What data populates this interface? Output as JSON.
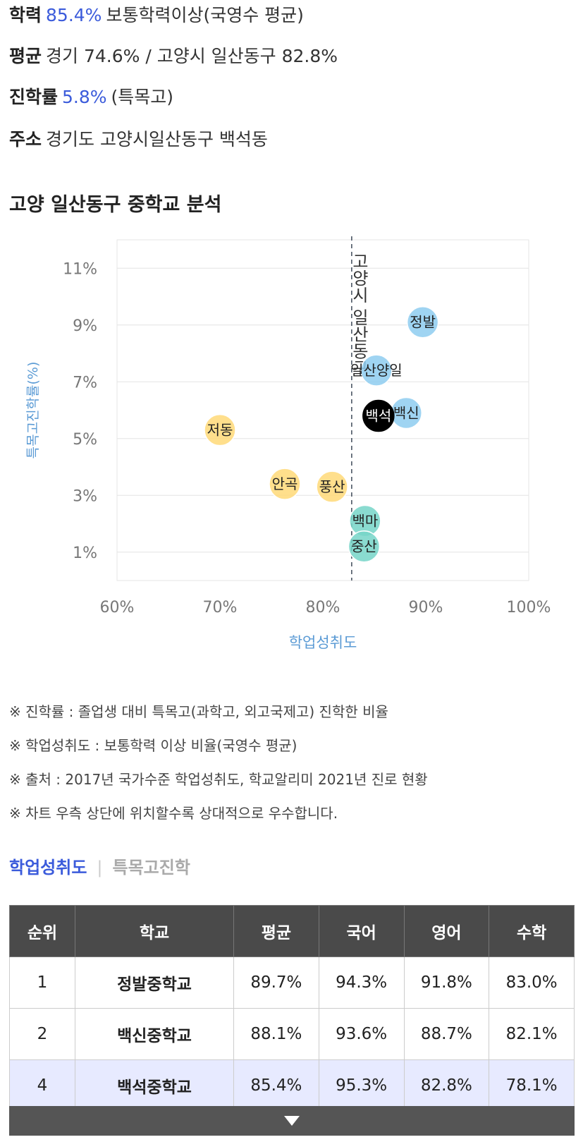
{
  "summary": {
    "l1": {
      "label": "학력",
      "value": "85.4%",
      "rest": "보통학력이상(국영수 평균)"
    },
    "l2": {
      "label": "평균",
      "rest": "경기 74.6% / 고양시 일산동구 82.8%"
    },
    "l3": {
      "label": "진학률",
      "value": "5.8%",
      "rest": "(특목고)"
    },
    "l4": {
      "label": "주소",
      "rest": "경기도 고양시일산동구 백석동"
    }
  },
  "section_title": "고양 일산동구 중학교 분석",
  "chart_data": {
    "type": "scatter",
    "xlabel": "학업성취도",
    "ylabel": "특목고진학률(%)",
    "xlim": [
      60,
      100
    ],
    "ylim": [
      0,
      12
    ],
    "xticks": [
      "60%",
      "70%",
      "80%",
      "90%",
      "100%"
    ],
    "yticks": [
      "1%",
      "3%",
      "5%",
      "7%",
      "9%",
      "11%"
    ],
    "reference_line": {
      "x": 82.8,
      "label": "고양시 일산동구"
    },
    "colors": {
      "blue": "#8ecdf0",
      "teal": "#76d5c8",
      "yellow": "#ffd978",
      "black": "#000000"
    },
    "points": [
      {
        "name": "정발",
        "x": 89.7,
        "y": 9.1,
        "color": "blue"
      },
      {
        "name": "일산양일",
        "x": 85.2,
        "y": 7.4,
        "color": "blue"
      },
      {
        "name": "백신",
        "x": 88.1,
        "y": 5.9,
        "color": "blue"
      },
      {
        "name": "백석",
        "x": 85.4,
        "y": 5.8,
        "color": "black"
      },
      {
        "name": "저동",
        "x": 70.0,
        "y": 5.3,
        "color": "yellow"
      },
      {
        "name": "안곡",
        "x": 76.3,
        "y": 3.4,
        "color": "yellow"
      },
      {
        "name": "풍산",
        "x": 80.9,
        "y": 3.3,
        "color": "yellow"
      },
      {
        "name": "백마",
        "x": 84.1,
        "y": 2.1,
        "color": "teal"
      },
      {
        "name": "중산",
        "x": 84.0,
        "y": 1.2,
        "color": "teal"
      }
    ]
  },
  "notes": [
    "※ 진학률 : 졸업생 대비 특목고(과학고, 외고국제고) 진학한 비율",
    "※ 학업성취도 : 보통학력 이상 비율(국영수 평균)",
    "※ 출처 : 2017년 국가수준 학업성취도, 학교알리미 2021년 진로 현황",
    "※ 차트 우측 상단에 위치할수록 상대적으로 우수합니다."
  ],
  "tabs": {
    "active": "학업성취도",
    "inactive": "특목고진학"
  },
  "table": {
    "headers": [
      "순위",
      "학교",
      "평균",
      "국어",
      "영어",
      "수학"
    ],
    "rows": [
      [
        "1",
        "정발중학교",
        "89.7%",
        "94.3%",
        "91.8%",
        "83.0%"
      ],
      [
        "2",
        "백신중학교",
        "88.1%",
        "93.6%",
        "88.7%",
        "82.1%"
      ],
      [
        "4",
        "백석중학교",
        "85.4%",
        "95.3%",
        "82.8%",
        "78.1%"
      ]
    ]
  }
}
